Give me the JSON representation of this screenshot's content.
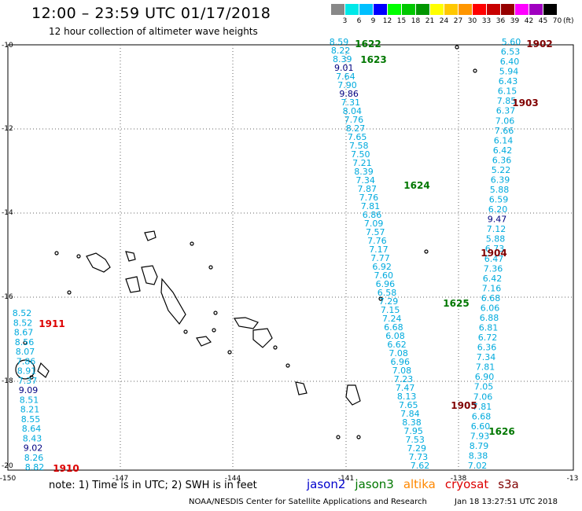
{
  "header": {
    "title": "12:00 – 23:59 UTC 01/17/2018",
    "subtitle": "12 hour collection of altimeter wave heights"
  },
  "colorbar": {
    "labels": [
      "3",
      "6",
      "9",
      "12",
      "15",
      "18",
      "21",
      "24",
      "27",
      "30",
      "33",
      "36",
      "39",
      "42",
      "45",
      "70"
    ],
    "colors": [
      "#888888",
      "#00e8e8",
      "#00c0ff",
      "#0000ff",
      "#00ff00",
      "#00c800",
      "#009600",
      "#ffff00",
      "#ffc800",
      "#ff9600",
      "#ff0000",
      "#c80000",
      "#960000",
      "#ff00ff",
      "#a000c0",
      "#000000"
    ],
    "unit": "(ft)"
  },
  "axes": {
    "lon_ticks": [
      "-150",
      "-147",
      "-144",
      "-141",
      "-138",
      "-13"
    ],
    "lat_ticks": [
      "-10",
      "-12",
      "-14",
      "-16",
      "-18",
      "-20"
    ]
  },
  "colors": {
    "jason2": "#0000cc",
    "jason3": "#007700",
    "altika": "#ff8800",
    "cryosat": "#dd0000",
    "s3a": "#800000",
    "light": "#00aadd",
    "dark": "#000080"
  },
  "tracks": [
    {
      "id": "1622",
      "sat": "jason3",
      "values": [
        "8.59",
        "8.22",
        "8.39",
        "9.01",
        "7.64",
        "7.90",
        "9.86",
        "7.31",
        "8.04",
        "7.76",
        "8.27",
        "7.65",
        "7.58",
        "7.50",
        "7.21",
        "8.39",
        "7.34",
        "7.87",
        "7.76",
        "7.81",
        "6.86",
        "7.09",
        "7.57",
        "7.76",
        "7.17",
        "7.77",
        "6.92",
        "7.60",
        "6.96",
        "6.58",
        "7.29",
        "7.15",
        "7.24",
        "6.68",
        "6.08",
        "6.62",
        "7.08",
        "6.96",
        "7.08",
        "7.23",
        "7.47",
        "8.13",
        "7.65",
        "7.84",
        "8.38",
        "7.95",
        "7.53",
        "7.29",
        "7.73",
        "7.62"
      ]
    },
    {
      "id": "1902",
      "sat": "s3a",
      "values": [
        "5.60",
        "6.53",
        "6.40",
        "5.94",
        "6.43",
        "6.15",
        "7.85",
        "6.37",
        "7.06",
        "7.66",
        "6.14",
        "6.42",
        "6.36",
        "5.22",
        "6.39",
        "5.88",
        "6.59",
        "6.20",
        "9.47",
        "7.12",
        "5.88",
        "6.73",
        "6.47",
        "7.36",
        "6.42",
        "7.16",
        "6.68",
        "6.06",
        "6.88",
        "6.81",
        "6.72",
        "6.36",
        "7.34",
        "7.81",
        "6.90",
        "7.05",
        "7.06",
        "7.81",
        "6.68",
        "6.60",
        "7.93",
        "8.79",
        "8.38",
        "7.02"
      ]
    },
    {
      "id": "1911",
      "sat": "cryosat",
      "values": [
        "8.52",
        "8.52",
        "8.67",
        "8.56",
        "8.07",
        "7.86",
        "8.91",
        "7.37",
        "9.09",
        "8.51",
        "8.21",
        "8.55",
        "8.64",
        "8.43",
        "9.02",
        "8.26",
        "8.82"
      ]
    }
  ],
  "track_labels": [
    {
      "text": "1622",
      "sat": "jason3"
    },
    {
      "text": "1623",
      "sat": "jason3"
    },
    {
      "text": "1624",
      "sat": "jason3"
    },
    {
      "text": "1625",
      "sat": "jason3"
    },
    {
      "text": "1626",
      "sat": "jason3"
    },
    {
      "text": "1902",
      "sat": "s3a"
    },
    {
      "text": "1903",
      "sat": "s3a"
    },
    {
      "text": "1904",
      "sat": "s3a"
    },
    {
      "text": "1905",
      "sat": "s3a"
    },
    {
      "text": "1911",
      "sat": "cryosat"
    },
    {
      "text": "1910",
      "sat": "cryosat"
    }
  ],
  "footer": {
    "note": "note:  1) Time is in UTC; 2) SWH is in feet",
    "legend": [
      {
        "label": "jason2",
        "sat": "jason2"
      },
      {
        "label": "jason3",
        "sat": "jason3"
      },
      {
        "label": "altika",
        "sat": "altika"
      },
      {
        "label": "cryosat",
        "sat": "cryosat"
      },
      {
        "label": "s3a",
        "sat": "s3a"
      }
    ],
    "credit": "NOAA/NESDIS Center for Satellite Applications and Research",
    "timestamp": "Jan 18 13:27:51 UTC 2018"
  }
}
